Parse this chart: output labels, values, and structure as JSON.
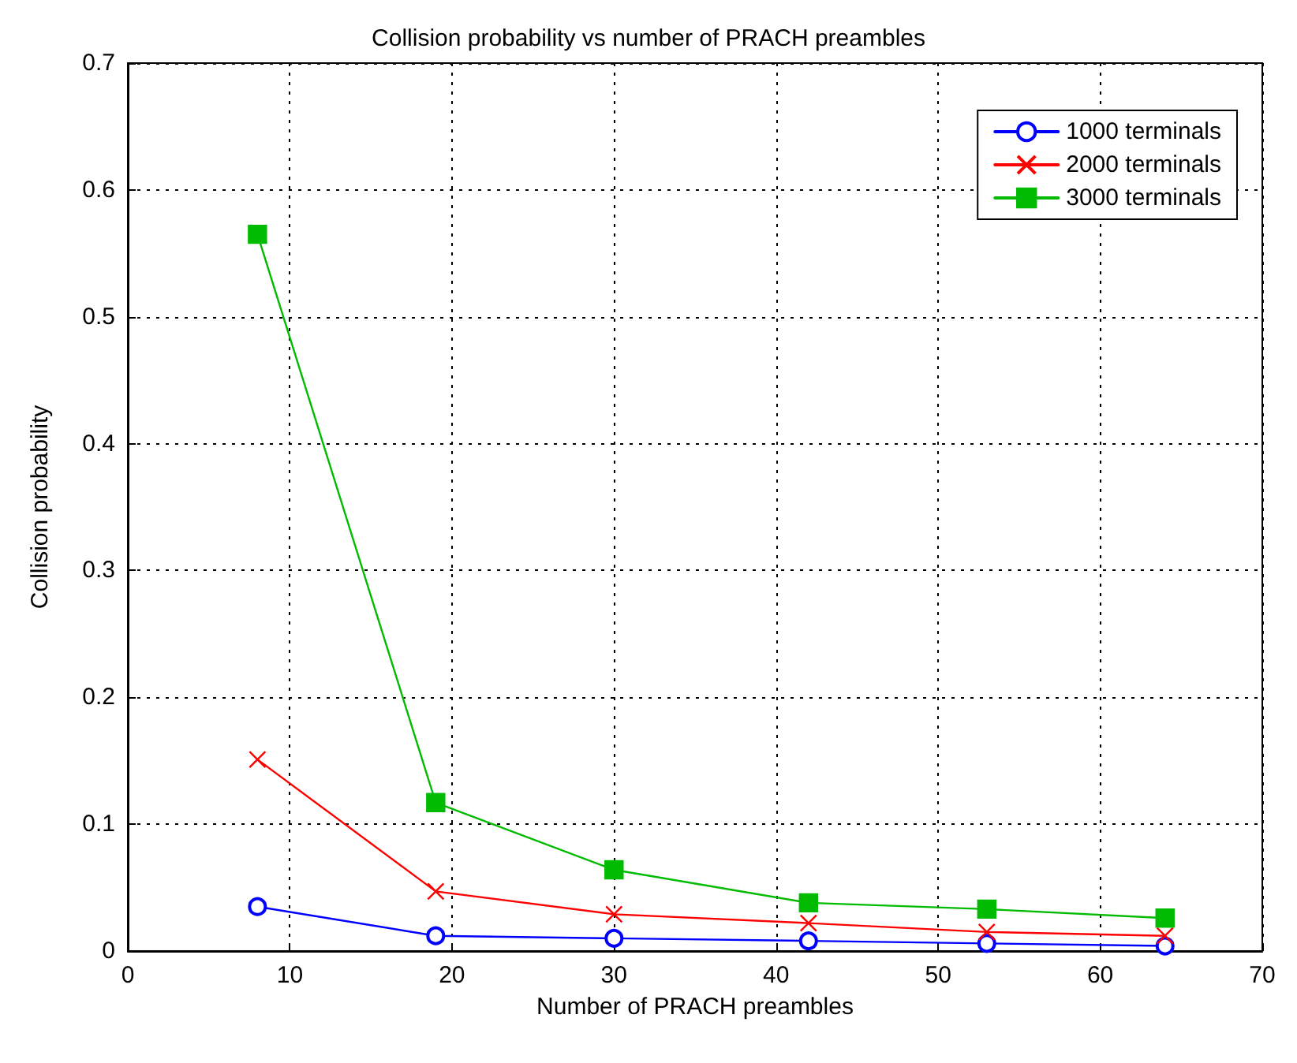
{
  "chart_data": {
    "type": "line",
    "title": "Collision probability vs number of PRACH preambles",
    "xlabel": "Number of PRACH preambles",
    "ylabel": "Collision probability",
    "x": [
      8,
      19,
      30,
      42,
      53,
      64
    ],
    "series": [
      {
        "name": "1000 terminals",
        "color": "#0000ff",
        "marker": "circle",
        "values": [
          0.035,
          0.012,
          0.01,
          0.008,
          0.006,
          0.004
        ]
      },
      {
        "name": "2000 terminals",
        "color": "#ff0000",
        "marker": "cross",
        "values": [
          0.151,
          0.047,
          0.029,
          0.022,
          0.015,
          0.012
        ]
      },
      {
        "name": "3000 terminals",
        "color": "#00bb00",
        "marker": "square",
        "values": [
          0.565,
          0.117,
          0.064,
          0.038,
          0.033,
          0.026
        ]
      }
    ],
    "xlim": [
      0,
      70
    ],
    "xticks": [
      0,
      10,
      20,
      30,
      40,
      50,
      60,
      70
    ],
    "ylim": [
      0,
      0.7
    ],
    "yticks": [
      0,
      0.1,
      0.2,
      0.3,
      0.4,
      0.5,
      0.6,
      0.7
    ],
    "grid": true,
    "legend": "top right",
    "line_style": "solid"
  }
}
